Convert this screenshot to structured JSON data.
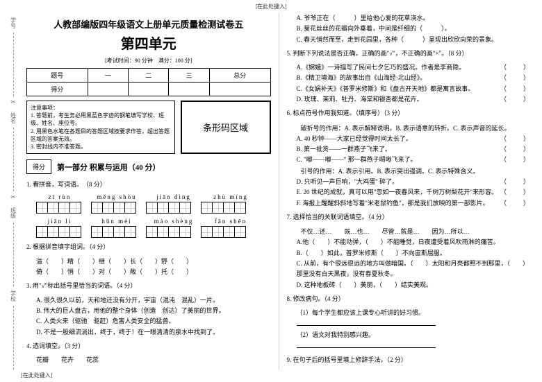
{
  "header_note": "[在此处键入]",
  "title_line1": "人教部编版四年级语文上册单元质量检测试卷五",
  "title_line2": "第四单元",
  "exam_time": "[考试时间：90 分钟　满分：100 分]",
  "score_table": {
    "cols": [
      "题号",
      "一",
      "二",
      "三",
      "总分"
    ],
    "row": "得分"
  },
  "notice": {
    "head": "注意事项：",
    "items": [
      "1. 答题前，考生务必用黑蓝色字迹的钢笔填写学校、班级、姓名、座位号。",
      "2. 用黑色水笔在各题目的答题区域按要求作答，超出答题区域的答案无效。",
      "3. 密封线内不准答题。"
    ]
  },
  "barcode": "条形码区域",
  "section1": {
    "score": "得分",
    "title": "第一部分 积累与运用（40 分）"
  },
  "q1": {
    "t": "1. 看拼音，写词语。　（8 分）",
    "py1": [
      "zī rùn",
      "měng shòu",
      "jiān dìng",
      "zhù míng"
    ],
    "py2": [
      "jiān lì",
      "hūn mèi",
      "mào shèng",
      "fān shēn"
    ]
  },
  "q2": {
    "t": "2. 根据拼音填字组词。（4 分）",
    "lines": [
      "溢（　　）精（　　）继（　　）长（　　）野（　　）",
      "倚（　　）悄（　　）对（　　）敞（　　）托（　　）"
    ]
  },
  "q3": {
    "t": "3. 用\"√\"标出括号里恰当的词语。（4 分）",
    "opts": [
      "A. 很久很久以前，天和地还没有分开，宇宙（混沌　混乱）一片。",
      "B. 伟大的巨人盘古，用他的整个身体（创造　创达）了美丽的世界。",
      "C. 人类火来（驱驰　驱赶）危害人类安全的猛兽。",
      "D. 不是一股细流淌出，终于，终于！在一眼清清的泉水中找到了。"
    ]
  },
  "q4": {
    "t": "4. 选词填空。（3 分）",
    "words": "花瓣　　花卉　　花蕊"
  },
  "q4r": {
    "opts": [
      "A. 爷爷正在（　　　）里给他心爱的花草浇水。",
      "B. 菊花丝丝的花瓣向外垂着，中间是纤细的（　　　）。",
      "C. 春天悄然而至，走到花园里，各种（　　　）呈现出欣欣向荣的景象。"
    ]
  },
  "q5": {
    "t": "5. 判断下列说法是否正确。正确的画\"√\"，不正确的画\"×\"。（8 分）",
    "opts": [
      "A.《嫦娥》一诗描写了民间七夕乞巧的盛况。作者是李商隐。",
      "B.《精卫填海》的故事出自《山海经·北山经》。",
      "C.《女娲补天》《普罗米修斯》和《盘古开天地》都是寓言故事。",
      "D. 玫瑰、茉莉、牡丹、海棠和银杏都是花卉。"
    ]
  },
  "q6": {
    "t": "6. 标点符号作用我知道。（填序号）（3 分）",
    "note": "破折号的作用：A. 表示解释说明。B. 表示语意的转折。C. 表示声音的延长。",
    "opts": [
      "A. 40 秒钟——大家已经觉得时间太长了。",
      "B. 第一批货——一群燕子飞来了。",
      "C. \"嘟——嘟——\" 那一群燕子啁啾飞来了。",
      "引号的作用：A. 表示引用。B. 表示突出强调。C. 表示特殊含义。",
      "D. 只听见一声巨响，\"大鸡蛋\" 碎了。",
      "E. 20 世纪的成就，真可以用\"忽如一夜春风来，千树万树梨花开\"来形容。",
      "F. 海报上醒醒斜斜地写着\"米老鼠钓鱼\"，那是我们放映的第一部影片。"
    ]
  },
  "q7": {
    "t": "7. 选择恰当的关联词语填空。（4 分）",
    "words": "不仅…还…　　既…也…　　尽管…就是…　　因为…所以…",
    "opts": [
      "A.他（　　）不能动弹，（　　）不能睡觉，日夜遭受着风吹雨淋的痛苦。",
      "B.（　　）如此，普罗米修斯（　　）不向宙斯屈服。",
      "C. 从前，有个很远很远的地方叫做暗国。（　　）太阳和月亮都照不到那里，（　　）那里没有白天黑夜，没有春夏秋冬。",
      "D. 这种地板砖（　　）美丽，（　　）结实美观。"
    ]
  },
  "q8": {
    "t": "8. 修改病句。（4 分）",
    "items": [
      "（1）每个学生都应该上课专心听讲的好习惯。",
      "（2）语文对我特别感兴趣。"
    ]
  },
  "q9": {
    "t": "9. 在句子后的括号里填上修辞手法。（2 分）"
  },
  "footer": "[在此处键入]"
}
